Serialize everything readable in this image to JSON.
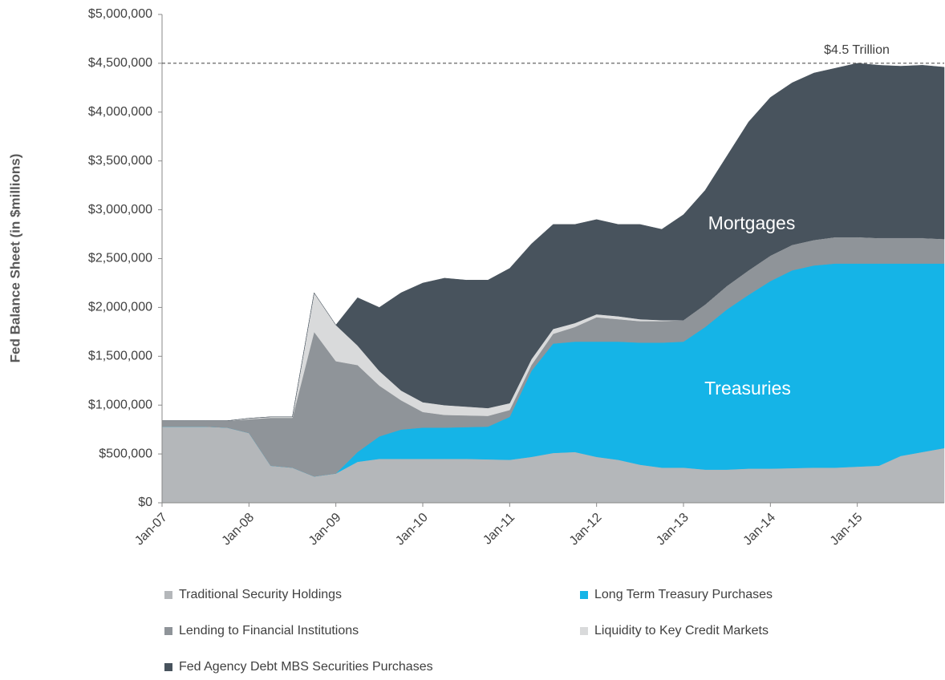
{
  "chart_data": {
    "type": "stacked_area",
    "y_axis_label": "Fed Balance Sheet (in $millions)",
    "categories": [
      "Jan-07",
      null,
      null,
      null,
      "Jan-08",
      null,
      null,
      null,
      "Jan-09",
      null,
      null,
      null,
      "Jan-10",
      null,
      null,
      null,
      "Jan-11",
      null,
      null,
      null,
      "Jan-12",
      null,
      null,
      null,
      "Jan-13",
      null,
      null,
      null,
      "Jan-14",
      null,
      null,
      null,
      "Jan-15",
      null,
      null,
      null,
      null
    ],
    "series": [
      {
        "name": "Traditional Security Holdings",
        "color": "#b4b7ba",
        "values": [
          780000,
          780000,
          780000,
          770000,
          715000,
          380000,
          360000,
          270000,
          300000,
          420000,
          450000,
          450000,
          450000,
          450000,
          450000,
          445000,
          440000,
          470000,
          510000,
          520000,
          470000,
          440000,
          390000,
          360000,
          360000,
          340000,
          340000,
          350000,
          350000,
          355000,
          360000,
          360000,
          370000,
          380000,
          480000,
          520000,
          560000
        ]
      },
      {
        "name": "Long Term Treasury Purchases",
        "color": "#15b4e7",
        "values": [
          0,
          0,
          0,
          0,
          0,
          0,
          0,
          0,
          0,
          100000,
          230000,
          300000,
          320000,
          320000,
          325000,
          335000,
          440000,
          880000,
          1120000,
          1130000,
          1180000,
          1210000,
          1250000,
          1280000,
          1290000,
          1460000,
          1640000,
          1780000,
          1920000,
          2025000,
          2070000,
          2090000,
          2080000,
          2070000,
          1970000,
          1930000,
          1890000
        ]
      },
      {
        "name": "Lending to Financial Institutions",
        "color": "#8f9499",
        "values": [
          60000,
          60000,
          60000,
          70000,
          140000,
          490000,
          510000,
          1480000,
          1150000,
          890000,
          520000,
          300000,
          160000,
          130000,
          120000,
          110000,
          70000,
          60000,
          100000,
          150000,
          250000,
          230000,
          220000,
          220000,
          220000,
          230000,
          240000,
          250000,
          260000,
          260000,
          260000,
          270000,
          270000,
          260000,
          260000,
          260000,
          250000
        ]
      },
      {
        "name": "Liquidity to Key Credit Markets",
        "color": "#d9dadb",
        "values": [
          0,
          0,
          0,
          0,
          10000,
          10000,
          10000,
          400000,
          370000,
          200000,
          150000,
          100000,
          100000,
          100000,
          90000,
          80000,
          70000,
          60000,
          50000,
          40000,
          30000,
          30000,
          20000,
          10000,
          0,
          0,
          0,
          0,
          0,
          0,
          0,
          0,
          0,
          0,
          0,
          0,
          0
        ]
      },
      {
        "name": "Fed Agency Debt MBS Securities Purchases",
        "color": "#48535d",
        "values": [
          0,
          0,
          0,
          0,
          0,
          0,
          0,
          0,
          0,
          490000,
          650000,
          1000000,
          1220000,
          1300000,
          1295000,
          1310000,
          1380000,
          1180000,
          1070000,
          1010000,
          970000,
          940000,
          970000,
          930000,
          1080000,
          1170000,
          1330000,
          1520000,
          1620000,
          1660000,
          1710000,
          1730000,
          1780000,
          1770000,
          1760000,
          1770000,
          1760000
        ]
      }
    ],
    "ylim": [
      0,
      5000000
    ],
    "yticks": [
      {
        "value": 0,
        "label": "$0"
      },
      {
        "value": 500000,
        "label": "$500,000"
      },
      {
        "value": 1000000,
        "label": "$1,000,000"
      },
      {
        "value": 1500000,
        "label": "$1,500,000"
      },
      {
        "value": 2000000,
        "label": "$2,000,000"
      },
      {
        "value": 2500000,
        "label": "$2,500,000"
      },
      {
        "value": 3000000,
        "label": "$3,000,000"
      },
      {
        "value": 3500000,
        "label": "$3,500,000"
      },
      {
        "value": 4000000,
        "label": "$4,000,000"
      },
      {
        "value": 4500000,
        "label": "$4,500,000"
      },
      {
        "value": 5000000,
        "label": "$5,000,000"
      }
    ],
    "reference_line": {
      "value": 4500000,
      "label": "$4.5 Trillion"
    },
    "annotations": [
      "Mortgages",
      "Treasuries"
    ]
  }
}
